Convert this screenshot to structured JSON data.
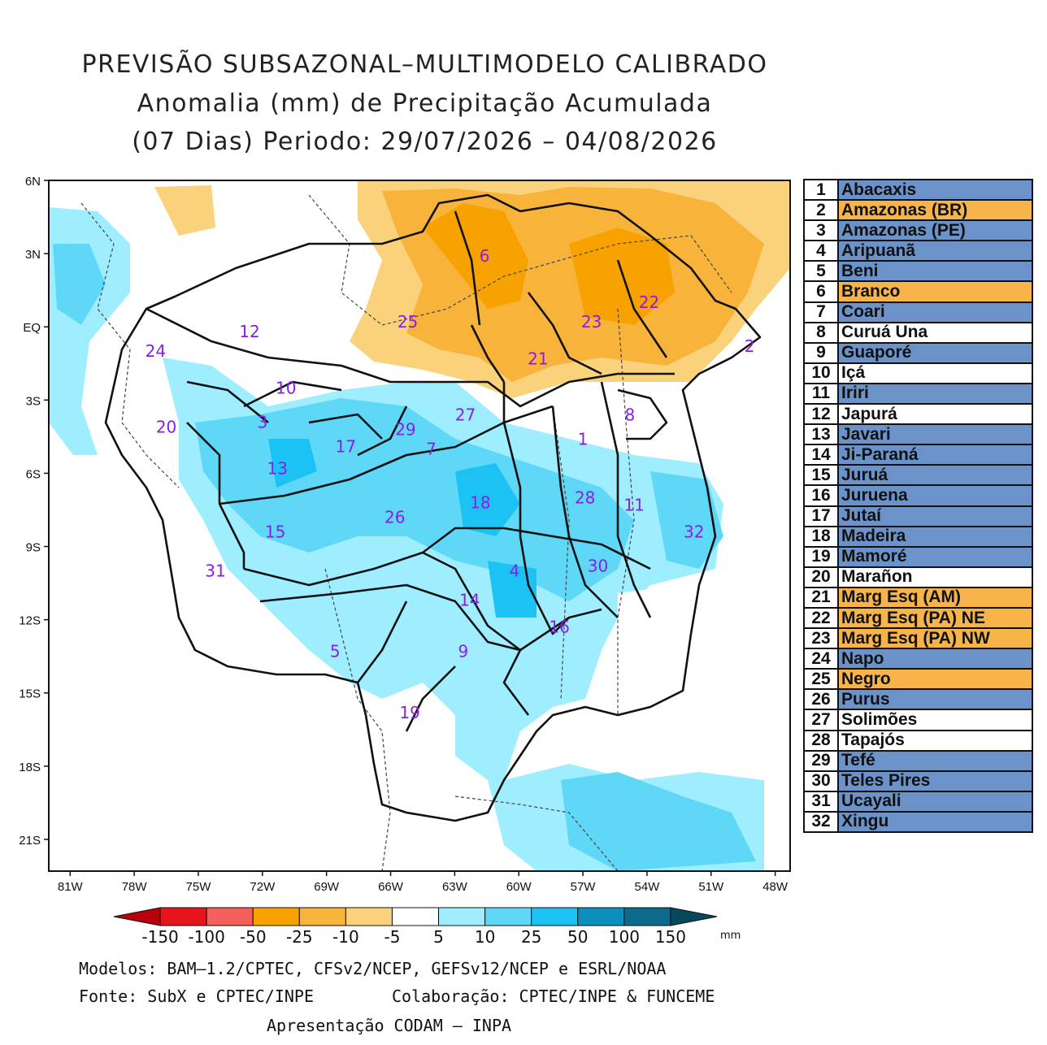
{
  "title": {
    "line1": "PREVISÃO SUBSAZONAL–MULTIMODELO CALIBRADO",
    "line2": "Anomalia (mm) de Precipitação Acumulada",
    "line3": "(07 Dias) Periodo: 29/07/2026 – 04/08/2026"
  },
  "axes": {
    "lat_labels": [
      "6N",
      "3N",
      "EQ",
      "3S",
      "6S",
      "9S",
      "12S",
      "15S",
      "18S",
      "21S"
    ],
    "lon_labels": [
      "81W",
      "78W",
      "75W",
      "72W",
      "69W",
      "66W",
      "63W",
      "60W",
      "57W",
      "54W",
      "51W",
      "48W"
    ]
  },
  "basin_labels": [
    {
      "id": "1",
      "lon": -57.0,
      "lat": -4.6
    },
    {
      "id": "2",
      "lon": -49.2,
      "lat": -0.8
    },
    {
      "id": "3",
      "lon": -72.0,
      "lat": -3.9
    },
    {
      "id": "4",
      "lon": -60.2,
      "lat": -10.0
    },
    {
      "id": "5",
      "lon": -68.6,
      "lat": -13.3
    },
    {
      "id": "6",
      "lon": -61.6,
      "lat": 2.9
    },
    {
      "id": "7",
      "lon": -64.1,
      "lat": -5.0
    },
    {
      "id": "8",
      "lon": -54.8,
      "lat": -3.6
    },
    {
      "id": "9",
      "lon": -62.6,
      "lat": -13.3
    },
    {
      "id": "10",
      "lon": -70.9,
      "lat": -2.5
    },
    {
      "id": "11",
      "lon": -54.6,
      "lat": -7.3
    },
    {
      "id": "12",
      "lon": -72.6,
      "lat": -0.2
    },
    {
      "id": "13",
      "lon": -71.3,
      "lat": -5.8
    },
    {
      "id": "14",
      "lon": -62.3,
      "lat": -11.2
    },
    {
      "id": "15",
      "lon": -71.4,
      "lat": -8.4
    },
    {
      "id": "16",
      "lon": -58.1,
      "lat": -12.3
    },
    {
      "id": "17",
      "lon": -68.1,
      "lat": -4.9
    },
    {
      "id": "18",
      "lon": -61.8,
      "lat": -7.2
    },
    {
      "id": "19",
      "lon": -65.1,
      "lat": -15.8
    },
    {
      "id": "20",
      "lon": -76.5,
      "lat": -4.1
    },
    {
      "id": "21",
      "lon": -59.1,
      "lat": -1.3
    },
    {
      "id": "22",
      "lon": -53.9,
      "lat": 1.0
    },
    {
      "id": "23",
      "lon": -56.6,
      "lat": 0.2
    },
    {
      "id": "24",
      "lon": -77.0,
      "lat": -1.0
    },
    {
      "id": "25",
      "lon": -65.2,
      "lat": 0.2
    },
    {
      "id": "26",
      "lon": -65.8,
      "lat": -7.8
    },
    {
      "id": "27",
      "lon": -62.5,
      "lat": -3.6
    },
    {
      "id": "28",
      "lon": -56.9,
      "lat": -7.0
    },
    {
      "id": "29",
      "lon": -65.3,
      "lat": -4.2
    },
    {
      "id": "30",
      "lon": -56.3,
      "lat": -9.8
    },
    {
      "id": "31",
      "lon": -74.2,
      "lat": -10.0
    },
    {
      "id": "32",
      "lon": -51.8,
      "lat": -8.4
    }
  ],
  "basin_table": [
    {
      "num": "1",
      "name": "Abacaxis",
      "color": "#6b93c9"
    },
    {
      "num": "2",
      "name": "Amazonas (BR)",
      "color": "#f7b44a"
    },
    {
      "num": "3",
      "name": "Amazonas (PE)",
      "color": "#6b93c9"
    },
    {
      "num": "4",
      "name": "Aripuanã",
      "color": "#6b93c9"
    },
    {
      "num": "5",
      "name": "Beni",
      "color": "#6b93c9"
    },
    {
      "num": "6",
      "name": "Branco",
      "color": "#f7b44a"
    },
    {
      "num": "7",
      "name": "Coari",
      "color": "#6b93c9"
    },
    {
      "num": "8",
      "name": "Curuá Una",
      "color": "#ffffff"
    },
    {
      "num": "9",
      "name": "Guaporé",
      "color": "#6b93c9"
    },
    {
      "num": "10",
      "name": "Içá",
      "color": "#ffffff"
    },
    {
      "num": "11",
      "name": "Iriri",
      "color": "#6b93c9"
    },
    {
      "num": "12",
      "name": "Japurá",
      "color": "#ffffff"
    },
    {
      "num": "13",
      "name": "Javari",
      "color": "#6b93c9"
    },
    {
      "num": "14",
      "name": "Ji-Paraná",
      "color": "#6b93c9"
    },
    {
      "num": "15",
      "name": "Juruá",
      "color": "#6b93c9"
    },
    {
      "num": "16",
      "name": "Juruena",
      "color": "#6b93c9"
    },
    {
      "num": "17",
      "name": "Jutaí",
      "color": "#6b93c9"
    },
    {
      "num": "18",
      "name": "Madeira",
      "color": "#6b93c9"
    },
    {
      "num": "19",
      "name": "Mamoré",
      "color": "#6b93c9"
    },
    {
      "num": "20",
      "name": "Marañon",
      "color": "#ffffff"
    },
    {
      "num": "21",
      "name": "Marg Esq (AM)",
      "color": "#f7b44a"
    },
    {
      "num": "22",
      "name": "Marg Esq (PA) NE",
      "color": "#f7b44a"
    },
    {
      "num": "23",
      "name": "Marg Esq (PA) NW",
      "color": "#f7b44a"
    },
    {
      "num": "24",
      "name": "Napo",
      "color": "#6b93c9"
    },
    {
      "num": "25",
      "name": "Negro",
      "color": "#f7b44a"
    },
    {
      "num": "26",
      "name": "Purus",
      "color": "#6b93c9"
    },
    {
      "num": "27",
      "name": "Solimões",
      "color": "#ffffff"
    },
    {
      "num": "28",
      "name": "Tapajós",
      "color": "#ffffff"
    },
    {
      "num": "29",
      "name": "Tefé",
      "color": "#6b93c9"
    },
    {
      "num": "30",
      "name": "Teles Pires",
      "color": "#6b93c9"
    },
    {
      "num": "31",
      "name": "Ucayali",
      "color": "#6b93c9"
    },
    {
      "num": "32",
      "name": "Xingu",
      "color": "#6b93c9"
    }
  ],
  "colorbar": {
    "ticks": [
      "-150",
      "-100",
      "-50",
      "-25",
      "-10",
      "-5",
      "5",
      "10",
      "25",
      "50",
      "100",
      "150"
    ],
    "colors": [
      "#b8000a",
      "#e8141b",
      "#f5605d",
      "#f7a200",
      "#f7b33a",
      "#fbd27c",
      "#ffffff",
      "#9feeff",
      "#5fd8f8",
      "#1cc2f4",
      "#0d8fbd",
      "#0c6a8c",
      "#08485f"
    ],
    "unit": "mm"
  },
  "footer": {
    "line1": "Modelos: BAM–1.2/CPTEC, CFSv2/NCEP, GEFSv12/NCEP e ESRL/NOAA",
    "line2": "Fonte: SubX e CPTEC/INPE",
    "line2b": "Colaboração: CPTEC/INPE & FUNCEME",
    "line3": "Apresentação CODAM – INPA"
  }
}
